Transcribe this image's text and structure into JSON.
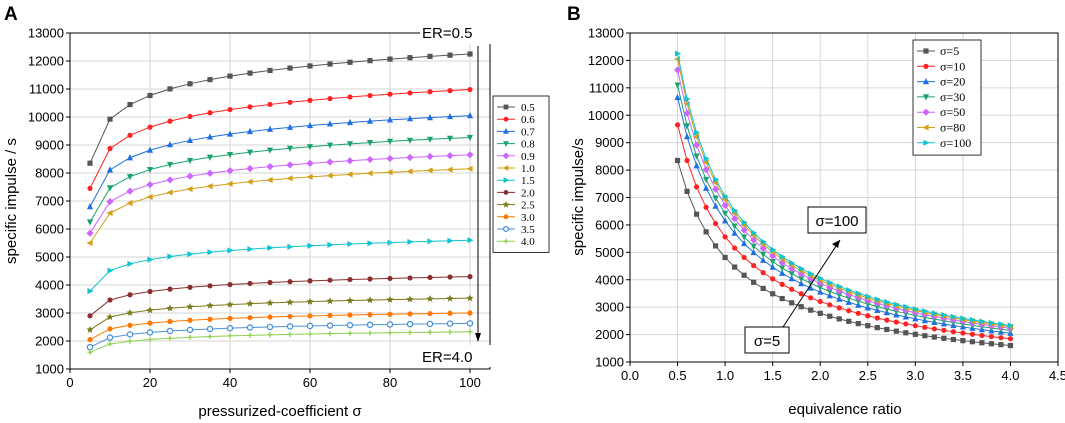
{
  "chart_data": [
    {
      "panel_label": "A",
      "type": "line",
      "xlabel": "pressurized-coefficient σ",
      "ylabel": "specific impulse / s",
      "xlim": [
        0,
        105
      ],
      "ylim": [
        1000,
        13000
      ],
      "xticks": [
        0,
        20,
        40,
        60,
        80,
        100
      ],
      "yticks": [
        1000,
        2000,
        3000,
        4000,
        5000,
        6000,
        7000,
        8000,
        9000,
        10000,
        11000,
        12000,
        13000
      ],
      "grid": true,
      "legend_position": "right",
      "annotations": [
        {
          "text": "ER=0.5",
          "at": [
            100,
            12800
          ]
        },
        {
          "text": "ER=4.0",
          "at": [
            100,
            1350
          ]
        }
      ],
      "x": [
        5,
        10,
        15,
        20,
        25,
        30,
        35,
        40,
        45,
        50,
        55,
        60,
        65,
        70,
        75,
        80,
        85,
        90,
        95,
        100
      ],
      "series": [
        {
          "name": "0.5",
          "color": "#555555",
          "marker": "square",
          "start": 8350,
          "end": 12250
        },
        {
          "name": "0.6",
          "color": "#ff2222",
          "marker": "circle",
          "start": 7450,
          "end": 10980
        },
        {
          "name": "0.7",
          "color": "#1f6fe0",
          "marker": "triangle-up",
          "start": 6800,
          "end": 10050
        },
        {
          "name": "0.8",
          "color": "#1aa36b",
          "marker": "triangle-down",
          "start": 6250,
          "end": 9270
        },
        {
          "name": "0.9",
          "color": "#cc66ff",
          "marker": "diamond",
          "start": 5850,
          "end": 8650
        },
        {
          "name": "1.0",
          "color": "#d4a017",
          "marker": "triangle-left",
          "start": 5500,
          "end": 8150
        },
        {
          "name": "1.5",
          "color": "#10c4cf",
          "marker": "triangle-right",
          "start": 3780,
          "end": 5600
        },
        {
          "name": "2.0",
          "color": "#8b2e2e",
          "marker": "circle",
          "start": 2900,
          "end": 4300
        },
        {
          "name": "2.5",
          "color": "#7a7a1a",
          "marker": "star",
          "start": 2400,
          "end": 3530
        },
        {
          "name": "3.0",
          "color": "#ff7700",
          "marker": "circle",
          "start": 2050,
          "end": 3000
        },
        {
          "name": "3.5",
          "color": "#4a90d9",
          "marker": "circle-open",
          "start": 1780,
          "end": 2630
        },
        {
          "name": "4.0",
          "color": "#8fd14f",
          "marker": "plus",
          "start": 1600,
          "end": 2330
        }
      ]
    },
    {
      "panel_label": "B",
      "type": "line",
      "xlabel": "equivalence ratio",
      "ylabel": "specific impulse/s",
      "xlim": [
        0,
        4.5
      ],
      "ylim": [
        1000,
        13000
      ],
      "xticks": [
        0.0,
        0.5,
        1.0,
        1.5,
        2.0,
        2.5,
        3.0,
        3.5,
        4.0,
        4.5
      ],
      "yticks": [
        1000,
        2000,
        3000,
        4000,
        5000,
        6000,
        7000,
        8000,
        9000,
        10000,
        11000,
        12000,
        13000
      ],
      "grid": true,
      "legend_position": "top-right",
      "annotations": [
        {
          "text": "σ=100",
          "at": [
            2.05,
            5350
          ]
        },
        {
          "text": "σ=5",
          "at": [
            1.45,
            1950
          ]
        }
      ],
      "x": [
        0.5,
        0.6,
        0.7,
        0.8,
        0.9,
        1.0,
        1.1,
        1.2,
        1.3,
        1.4,
        1.5,
        1.6,
        1.7,
        1.8,
        1.9,
        2.0,
        2.1,
        2.2,
        2.3,
        2.4,
        2.5,
        2.6,
        2.7,
        2.8,
        2.9,
        3.0,
        3.1,
        3.2,
        3.3,
        3.4,
        3.5,
        3.6,
        3.7,
        3.8,
        3.9,
        4.0
      ],
      "series": [
        {
          "name": "σ=5",
          "color": "#555555",
          "marker": "square",
          "start": 8350,
          "end": 1600
        },
        {
          "name": "σ=10",
          "color": "#ff2222",
          "marker": "circle",
          "start": 9650,
          "end": 1850
        },
        {
          "name": "σ=20",
          "color": "#1f6fe0",
          "marker": "triangle-up",
          "start": 10650,
          "end": 2050
        },
        {
          "name": "σ=30",
          "color": "#1aa36b",
          "marker": "triangle-down",
          "start": 11100,
          "end": 2150
        },
        {
          "name": "σ=50",
          "color": "#cc66ff",
          "marker": "diamond",
          "start": 11650,
          "end": 2230
        },
        {
          "name": "σ=80",
          "color": "#d4a017",
          "marker": "triangle-left",
          "start": 12050,
          "end": 2290
        },
        {
          "name": "σ=100",
          "color": "#10c4cf",
          "marker": "triangle-right",
          "start": 12250,
          "end": 2330
        }
      ]
    }
  ]
}
